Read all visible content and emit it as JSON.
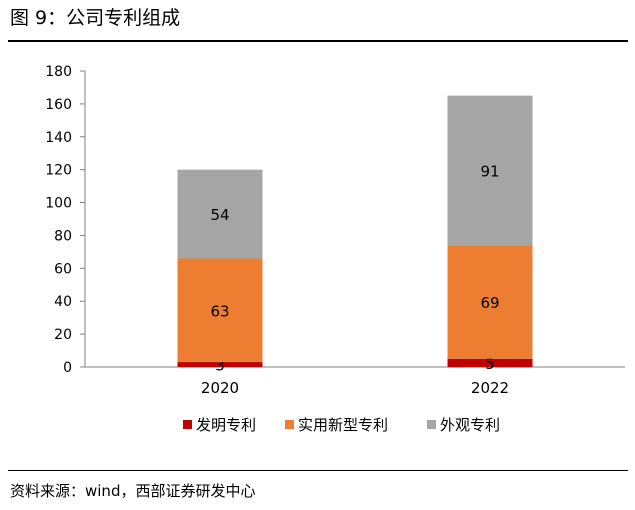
{
  "figure": {
    "title": "图 9：公司专利组成",
    "source": "资料来源：wind，西部证券研发中心"
  },
  "colors": {
    "发明专利": "#C00000",
    "实用新型专利": "#ED7D31",
    "外观专利": "#A5A5A5"
  },
  "chart_data": {
    "type": "bar",
    "stacked": true,
    "title": "",
    "xlabel": "",
    "ylabel": "",
    "categories": [
      "2020",
      "2022"
    ],
    "series": [
      {
        "name": "发明专利",
        "values": [
          3,
          5
        ]
      },
      {
        "name": "实用新型专利",
        "values": [
          63,
          69
        ]
      },
      {
        "name": "外观专利",
        "values": [
          54,
          91
        ]
      }
    ],
    "ylim": [
      0,
      180
    ],
    "yticks": [
      0,
      20,
      40,
      60,
      80,
      100,
      120,
      140,
      160,
      180
    ],
    "grid": false,
    "legend_position": "bottom"
  }
}
